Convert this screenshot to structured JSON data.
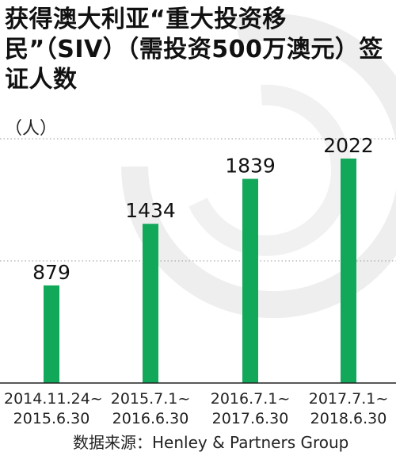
{
  "title": "获得澳大利亚“重大投资移民”（SIV）（需投资500万澳元）签证人数",
  "unit": "（人）",
  "source": "数据来源：Henley & Partners Group",
  "colors": {
    "bar": "#12a85a",
    "grid": "#9a9a9a",
    "watermark": "#eeeeee"
  },
  "chart_data": {
    "type": "bar",
    "categories": [
      [
        "2014.11.24~",
        "2015.6.30"
      ],
      [
        "2015.7.1~",
        "2016.6.30"
      ],
      [
        "2016.7.1~",
        "2017.6.30"
      ],
      [
        "2017.7.1~",
        "2018.6.30"
      ]
    ],
    "values": [
      879,
      1434,
      1839,
      2022
    ],
    "value_labels": [
      "879",
      "1434",
      "1839",
      "2022"
    ],
    "ylabel": "（人）",
    "ylim": [
      0,
      2200
    ],
    "gridlines": [
      1100,
      2200
    ],
    "grid": true,
    "legend": "none"
  }
}
